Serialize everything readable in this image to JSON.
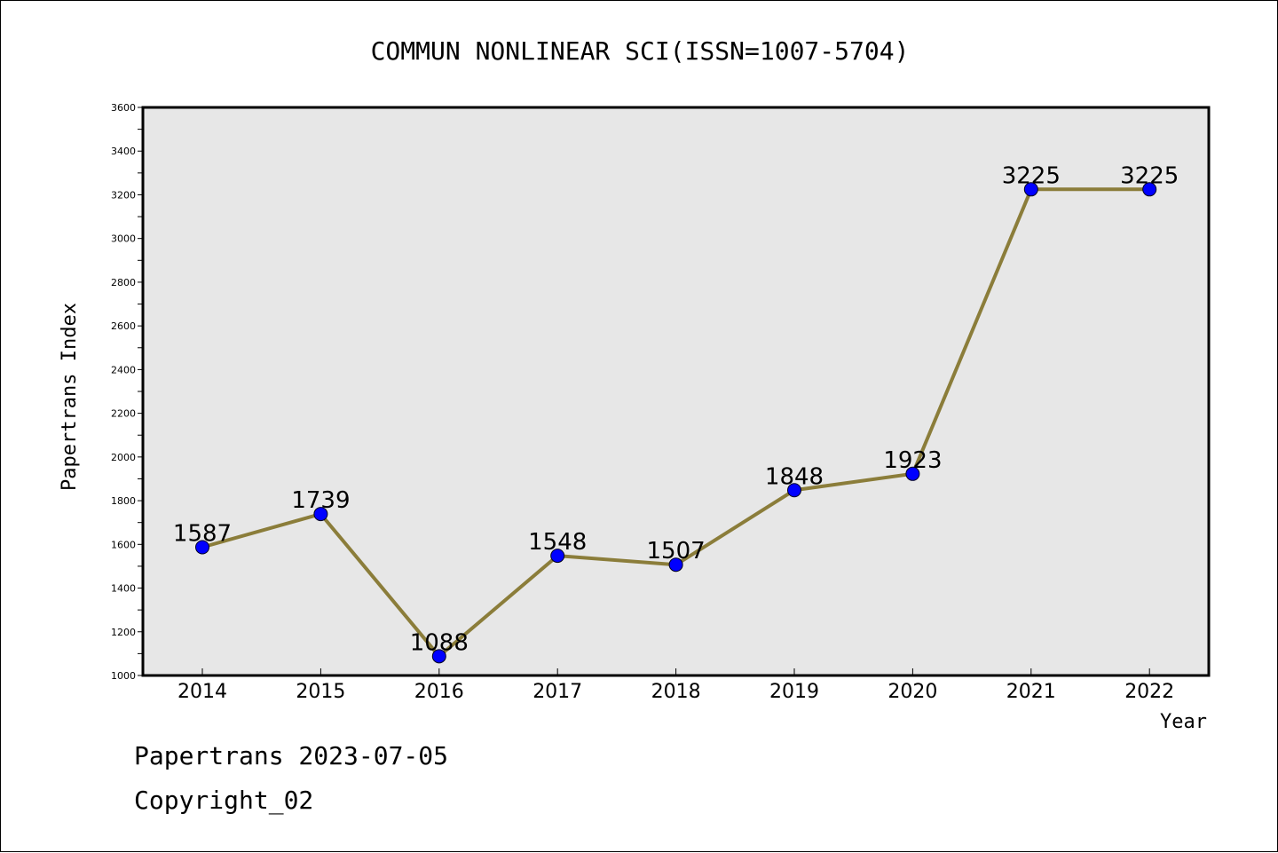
{
  "chart_data": {
    "type": "line",
    "title": "COMMUN NONLINEAR SCI(ISSN=1007-5704)",
    "xlabel": "Year",
    "ylabel": "Papertrans Index",
    "categories": [
      "2014",
      "2015",
      "2016",
      "2017",
      "2018",
      "2019",
      "2020",
      "2021",
      "2022"
    ],
    "values": [
      1587,
      1739,
      1088,
      1548,
      1507,
      1848,
      1923,
      3225,
      3225
    ],
    "ylim": [
      1000,
      3600
    ],
    "yticks": [
      1000,
      1200,
      1400,
      1600,
      1800,
      2000,
      2200,
      2400,
      2600,
      2800,
      3000,
      3200,
      3400,
      3600
    ],
    "grid": false,
    "legend": "none",
    "colors": {
      "line": "#8b7d3a",
      "marker": "#0000ff",
      "plot_background": "#e7e7e7"
    }
  },
  "footer": {
    "source": "Papertrans 2023-07-05",
    "copyright": "Copyright_02"
  }
}
